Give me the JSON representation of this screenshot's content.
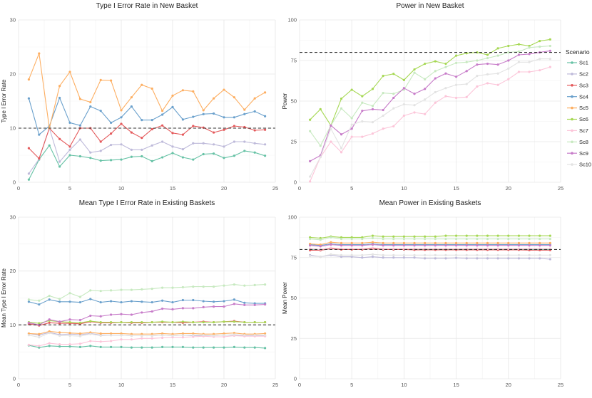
{
  "chart_data": [
    {
      "type": "line",
      "title": "Type I Error Rate in New Basket",
      "xlabel": "",
      "ylabel": "Type I Error Rate",
      "xlim": [
        0,
        25
      ],
      "ylim": [
        0,
        30
      ],
      "xticks": [
        0,
        5,
        10,
        15,
        20,
        25
      ],
      "yticks": [
        0,
        10,
        20,
        30
      ],
      "reference_line": 10,
      "x": [
        1,
        2,
        3,
        4,
        5,
        6,
        7,
        8,
        9,
        10,
        11,
        12,
        13,
        14,
        15,
        16,
        17,
        18,
        19,
        20,
        21,
        22,
        23,
        24
      ],
      "series": [
        {
          "name": "Sc1",
          "values": [
            0.5,
            4.2,
            6.8,
            2.9,
            5.0,
            4.8,
            4.5,
            4.0,
            4.1,
            4.2,
            4.7,
            4.8,
            3.9,
            4.6,
            5.4,
            4.6,
            4.2,
            5.2,
            5.3,
            4.5,
            4.9,
            5.8,
            5.5,
            4.9
          ]
        },
        {
          "name": "Sc2",
          "values": [
            1.6,
            4.3,
            10.0,
            3.8,
            6.0,
            7.9,
            5.5,
            5.8,
            6.9,
            7.0,
            6.0,
            6.0,
            6.8,
            7.5,
            6.6,
            6.1,
            7.2,
            7.2,
            7.0,
            6.6,
            7.5,
            7.5,
            7.2,
            7.0
          ]
        },
        {
          "name": "Sc3",
          "values": [
            6.3,
            4.4,
            10.0,
            8.0,
            6.6,
            10.0,
            10.0,
            7.5,
            9.0,
            10.8,
            9.2,
            8.2,
            9.8,
            10.5,
            9.1,
            8.8,
            10.4,
            10.1,
            9.2,
            9.7,
            10.4,
            10.2,
            9.6,
            9.7
          ]
        },
        {
          "name": "Sc4",
          "values": [
            15.5,
            8.8,
            10.4,
            15.6,
            11.0,
            10.5,
            14.0,
            13.2,
            11.0,
            12.0,
            14.0,
            11.5,
            11.5,
            12.5,
            13.9,
            11.6,
            12.1,
            12.6,
            12.7,
            12.0,
            12.0,
            12.6,
            13.1,
            12.2
          ]
        },
        {
          "name": "Sc5",
          "values": [
            19.0,
            23.8,
            10.0,
            17.8,
            20.4,
            15.4,
            14.8,
            18.9,
            18.8,
            13.3,
            15.7,
            18.0,
            17.3,
            13.2,
            16.0,
            17.0,
            16.8,
            13.3,
            15.5,
            17.1,
            15.7,
            13.4,
            15.5,
            16.6
          ]
        }
      ]
    },
    {
      "type": "line",
      "title": "Power in New Basket",
      "xlabel": "",
      "ylabel": "Power",
      "xlim": [
        0,
        25
      ],
      "ylim": [
        0,
        100
      ],
      "xticks": [
        0,
        5,
        10,
        15,
        20,
        25
      ],
      "yticks": [
        0,
        25,
        50,
        75,
        100
      ],
      "reference_line": 80,
      "x": [
        1,
        2,
        3,
        4,
        5,
        6,
        7,
        8,
        9,
        10,
        11,
        12,
        13,
        14,
        15,
        16,
        17,
        18,
        19,
        20,
        21,
        22,
        23,
        24
      ],
      "series": [
        {
          "name": "Sc6",
          "values": [
            38.5,
            45.0,
            35.0,
            51.5,
            57.0,
            53.0,
            57.5,
            65.5,
            66.8,
            63.0,
            69.5,
            73.0,
            74.5,
            73.0,
            78.0,
            79.5,
            80.0,
            78.5,
            82.5,
            84.0,
            85.0,
            84.0,
            87.0,
            88.0
          ]
        },
        {
          "name": "Sc7",
          "values": [
            0.5,
            15.5,
            25.0,
            18.5,
            28.0,
            28.0,
            30.0,
            33.0,
            34.5,
            41.0,
            43.0,
            42.0,
            49.0,
            53.0,
            52.0,
            52.5,
            59.0,
            61.0,
            60.0,
            63.5,
            68.0,
            68.0,
            69.0,
            71.0
          ]
        },
        {
          "name": "Sc8",
          "values": [
            31.5,
            22.5,
            35.0,
            45.5,
            39.5,
            49.0,
            47.0,
            55.0,
            54.5,
            57.0,
            67.5,
            63.5,
            68.5,
            71.0,
            73.5,
            74.0,
            75.0,
            76.5,
            78.0,
            80.0,
            80.5,
            83.0,
            83.5,
            84.0
          ]
        },
        {
          "name": "Sc9",
          "values": [
            13.0,
            16.5,
            35.0,
            29.5,
            33.0,
            44.0,
            45.0,
            44.5,
            52.0,
            58.0,
            54.5,
            57.5,
            64.0,
            67.0,
            65.0,
            68.5,
            72.5,
            73.0,
            72.5,
            75.0,
            78.5,
            79.0,
            80.0,
            81.0
          ]
        },
        {
          "name": "Sc10",
          "values": [
            3.5,
            15.5,
            33.0,
            21.0,
            35.5,
            37.5,
            37.0,
            41.0,
            45.5,
            48.0,
            47.5,
            51.0,
            55.5,
            58.0,
            60.0,
            60.5,
            65.5,
            66.5,
            67.0,
            70.0,
            74.0,
            74.0,
            76.0,
            76.0
          ]
        }
      ]
    },
    {
      "type": "line",
      "title": "Mean Type I Error Rate in Existing Baskets",
      "xlabel": "",
      "ylabel": "Mean Type I Error Rate",
      "xlim": [
        0,
        25
      ],
      "ylim": [
        0,
        30
      ],
      "xticks": [
        0,
        5,
        10,
        15,
        20,
        25
      ],
      "yticks": [
        0,
        10,
        20,
        30
      ],
      "reference_line": 10,
      "x": [
        1,
        2,
        3,
        4,
        5,
        6,
        7,
        8,
        9,
        10,
        11,
        12,
        13,
        14,
        15,
        16,
        17,
        18,
        19,
        20,
        21,
        22,
        23,
        24
      ],
      "series": [
        {
          "name": "Sc1",
          "values": [
            6.2,
            5.8,
            6.1,
            6.0,
            6.0,
            5.9,
            6.1,
            5.9,
            5.9,
            5.9,
            5.8,
            5.8,
            5.8,
            5.9,
            5.9,
            5.9,
            5.8,
            5.8,
            5.8,
            5.8,
            5.9,
            5.8,
            5.8,
            5.7
          ]
        },
        {
          "name": "Sc2",
          "values": [
            8.4,
            8.1,
            8.6,
            8.2,
            8.3,
            8.2,
            8.4,
            8.1,
            8.1,
            8.1,
            8.0,
            8.0,
            8.0,
            8.1,
            8.0,
            8.1,
            8.0,
            8.0,
            8.0,
            8.1,
            8.1,
            8.0,
            8.0,
            8.0
          ]
        },
        {
          "name": "Sc3",
          "values": [
            10.2,
            9.9,
            10.4,
            10.3,
            10.3,
            10.2,
            10.6,
            10.4,
            10.4,
            10.5,
            10.4,
            10.4,
            10.5,
            10.5,
            10.5,
            10.4,
            10.5,
            10.6,
            10.5,
            10.6,
            10.7,
            10.5,
            10.5,
            10.5
          ]
        },
        {
          "name": "Sc4",
          "values": [
            14.3,
            13.8,
            14.7,
            14.3,
            14.3,
            14.2,
            14.8,
            14.2,
            14.4,
            14.2,
            14.4,
            14.3,
            14.2,
            14.5,
            14.2,
            14.6,
            14.6,
            14.4,
            14.3,
            14.4,
            14.7,
            14.1,
            14.0,
            14.0
          ]
        },
        {
          "name": "Sc5",
          "values": [
            8.4,
            8.3,
            8.8,
            8.6,
            8.5,
            8.4,
            8.6,
            8.4,
            8.4,
            8.4,
            8.3,
            8.3,
            8.3,
            8.4,
            8.3,
            8.4,
            8.4,
            8.3,
            8.3,
            8.4,
            8.5,
            8.3,
            8.3,
            8.4
          ]
        },
        {
          "name": "Sc6",
          "values": [
            10.5,
            10.3,
            10.8,
            10.6,
            10.5,
            10.4,
            10.7,
            10.5,
            10.5,
            10.5,
            10.5,
            10.5,
            10.5,
            10.6,
            10.5,
            10.6,
            10.5,
            10.5,
            10.5,
            10.6,
            10.6,
            10.5,
            10.5,
            10.5
          ]
        },
        {
          "name": "Sc7",
          "values": [
            6.3,
            6.1,
            6.6,
            6.4,
            6.4,
            6.5,
            7.0,
            6.9,
            7.0,
            7.3,
            7.3,
            7.5,
            7.5,
            7.6,
            7.7,
            7.7,
            7.8,
            7.9,
            7.8,
            7.8,
            8.0,
            7.9,
            7.9,
            7.9
          ]
        },
        {
          "name": "Sc8",
          "values": [
            14.7,
            14.5,
            15.4,
            14.8,
            15.9,
            15.2,
            16.4,
            16.3,
            16.4,
            16.5,
            16.5,
            16.6,
            16.7,
            16.9,
            16.9,
            17.0,
            17.1,
            17.1,
            17.1,
            17.3,
            17.5,
            17.3,
            17.4,
            17.5
          ]
        },
        {
          "name": "Sc9",
          "values": [
            10.4,
            10.0,
            11.0,
            10.6,
            11.0,
            10.9,
            11.7,
            11.6,
            11.9,
            12.0,
            11.9,
            12.3,
            12.5,
            13.0,
            12.9,
            13.1,
            13.1,
            13.3,
            13.4,
            13.4,
            13.9,
            13.7,
            13.7,
            13.8
          ]
        },
        {
          "name": "Sc10",
          "values": [
            8.1,
            7.7,
            8.5,
            8.0,
            8.0,
            7.9,
            8.3,
            8.0,
            8.1,
            8.1,
            8.0,
            8.0,
            8.0,
            8.1,
            8.0,
            8.1,
            8.1,
            8.1,
            8.0,
            8.1,
            8.2,
            8.1,
            8.1,
            8.1
          ]
        }
      ]
    },
    {
      "type": "line",
      "title": "Mean Power in Existing Baskets",
      "xlabel": "",
      "ylabel": "Mean Power",
      "xlim": [
        0,
        25
      ],
      "ylim": [
        0,
        100
      ],
      "xticks": [
        0,
        5,
        10,
        15,
        20,
        25
      ],
      "yticks": [
        0,
        25,
        50,
        75,
        100
      ],
      "reference_line": 80,
      "x": [
        1,
        2,
        3,
        4,
        5,
        6,
        7,
        8,
        9,
        10,
        11,
        12,
        13,
        14,
        15,
        16,
        17,
        18,
        19,
        20,
        21,
        22,
        23,
        24
      ],
      "series": [
        {
          "name": "Sc1",
          "values": [
            80.0,
            79.5,
            80.5,
            80.0,
            80.0,
            80.0,
            80.5,
            80.0,
            80.0,
            80.0,
            80.0,
            80.0,
            80.0,
            80.0,
            80.0,
            80.0,
            80.0,
            80.0,
            80.0,
            80.0,
            80.0,
            80.0,
            80.0,
            80.0
          ]
        },
        {
          "name": "Sc2",
          "values": [
            76.5,
            75.5,
            76.5,
            75.5,
            75.5,
            75.0,
            75.5,
            75.0,
            75.0,
            75.0,
            75.0,
            74.5,
            74.5,
            74.5,
            74.8,
            74.5,
            74.5,
            74.5,
            74.5,
            74.5,
            74.5,
            74.5,
            74.5,
            74.0
          ]
        },
        {
          "name": "Sc3",
          "values": [
            79.5,
            79.5,
            80.5,
            80.0,
            80.0,
            80.0,
            80.5,
            80.0,
            80.0,
            80.0,
            79.8,
            79.8,
            79.8,
            79.8,
            79.8,
            79.8,
            79.8,
            79.8,
            79.8,
            79.8,
            79.8,
            79.6,
            79.6,
            79.6
          ]
        },
        {
          "name": "Sc4",
          "values": [
            83.0,
            82.5,
            83.5,
            83.0,
            83.0,
            83.0,
            83.5,
            83.0,
            83.0,
            83.0,
            83.0,
            83.0,
            83.0,
            83.0,
            83.0,
            83.0,
            83.0,
            83.0,
            83.0,
            83.0,
            83.0,
            83.0,
            83.0,
            83.0
          ]
        },
        {
          "name": "Sc5",
          "values": [
            83.5,
            83.0,
            84.5,
            84.0,
            84.0,
            84.0,
            84.5,
            84.0,
            84.0,
            84.0,
            84.0,
            84.0,
            84.0,
            84.0,
            84.0,
            84.0,
            84.0,
            84.0,
            84.0,
            84.0,
            84.0,
            84.0,
            84.0,
            84.0
          ]
        },
        {
          "name": "Sc6",
          "values": [
            87.5,
            87.0,
            88.0,
            87.5,
            87.5,
            87.5,
            88.5,
            88.0,
            88.0,
            88.0,
            88.0,
            88.0,
            88.0,
            88.5,
            88.5,
            88.5,
            88.5,
            88.5,
            88.5,
            88.5,
            88.5,
            88.5,
            88.5,
            88.5
          ]
        },
        {
          "name": "Sc7",
          "values": [
            80.5,
            80.0,
            81.0,
            80.5,
            80.5,
            80.5,
            81.0,
            80.5,
            80.5,
            80.5,
            80.5,
            80.5,
            80.5,
            80.5,
            80.5,
            80.5,
            80.5,
            80.5,
            80.5,
            80.5,
            80.5,
            80.5,
            80.5,
            80.5
          ]
        },
        {
          "name": "Sc8",
          "values": [
            86.5,
            86.0,
            87.5,
            86.5,
            86.5,
            86.5,
            87.0,
            86.5,
            86.5,
            86.5,
            86.5,
            86.5,
            86.5,
            86.5,
            86.5,
            86.5,
            86.5,
            86.5,
            86.5,
            86.5,
            86.5,
            86.5,
            86.5,
            86.5
          ]
        },
        {
          "name": "Sc9",
          "values": [
            82.5,
            82.0,
            83.0,
            82.5,
            82.5,
            82.5,
            83.0,
            82.5,
            82.5,
            82.5,
            82.5,
            82.5,
            82.5,
            82.5,
            82.5,
            82.5,
            82.5,
            82.5,
            82.5,
            82.5,
            82.5,
            82.5,
            82.5,
            82.5
          ]
        },
        {
          "name": "Sc10",
          "values": [
            76.0,
            75.5,
            77.0,
            76.5,
            76.5,
            76.5,
            77.0,
            76.5,
            76.5,
            76.5,
            76.5,
            76.5,
            76.5,
            76.5,
            76.5,
            76.5,
            76.5,
            76.5,
            76.5,
            76.5,
            76.5,
            76.5,
            76.5,
            76.5
          ]
        }
      ]
    }
  ],
  "legend": {
    "title": "Scenario",
    "placement": "right",
    "items": [
      {
        "name": "Sc1",
        "color": "#66c2a5"
      },
      {
        "name": "Sc2",
        "color": "#bebada"
      },
      {
        "name": "Sc3",
        "color": "#e4595b"
      },
      {
        "name": "Sc4",
        "color": "#6aa0cc"
      },
      {
        "name": "Sc5",
        "color": "#fdae61"
      },
      {
        "name": "Sc6",
        "color": "#a6d854"
      },
      {
        "name": "Sc7",
        "color": "#fcc5d9"
      },
      {
        "name": "Sc8",
        "color": "#c7e9c0"
      },
      {
        "name": "Sc9",
        "color": "#c77cc9"
      },
      {
        "name": "Sc10",
        "color": "#e3e3e3"
      }
    ]
  },
  "colors": {
    "grid_major": "#e6e6e6",
    "grid_minor": "#f2f2f2",
    "reference_line": "#333333",
    "text": "#222222",
    "tick_text": "#555555"
  }
}
